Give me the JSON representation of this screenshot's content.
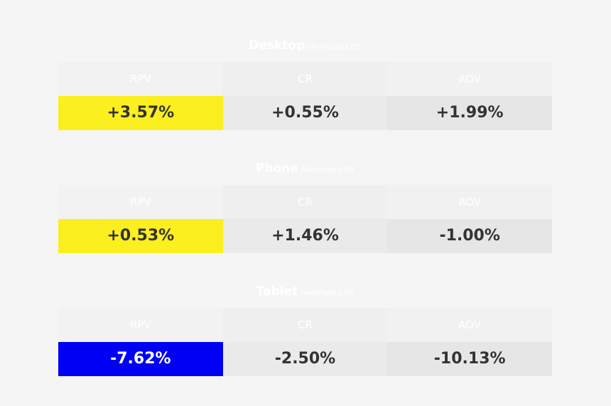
{
  "colors": {
    "highlight_positive": "#fcef1f",
    "highlight_negative": "#0000f5",
    "value_text": "#333333",
    "header_text": "#ffffff"
  },
  "sections": [
    {
      "name": "Desktop",
      "subtitle": "(Average Lift)",
      "headers": [
        "RPV",
        "CR",
        "AOV"
      ],
      "values": [
        "+3.57%",
        "+0.55%",
        "+1.99%"
      ]
    },
    {
      "name": "Phone",
      "subtitle": "(Average Lift)",
      "headers": [
        "RPV",
        "CR",
        "AOV"
      ],
      "values": [
        "+0.53%",
        "+1.46%",
        "-1.00%"
      ]
    },
    {
      "name": "Tablet",
      "subtitle": "(Average Lift)",
      "headers": [
        "RPV",
        "CR",
        "AOV"
      ],
      "values": [
        "-7.62%",
        "-2.50%",
        "-10.13%"
      ]
    }
  ]
}
